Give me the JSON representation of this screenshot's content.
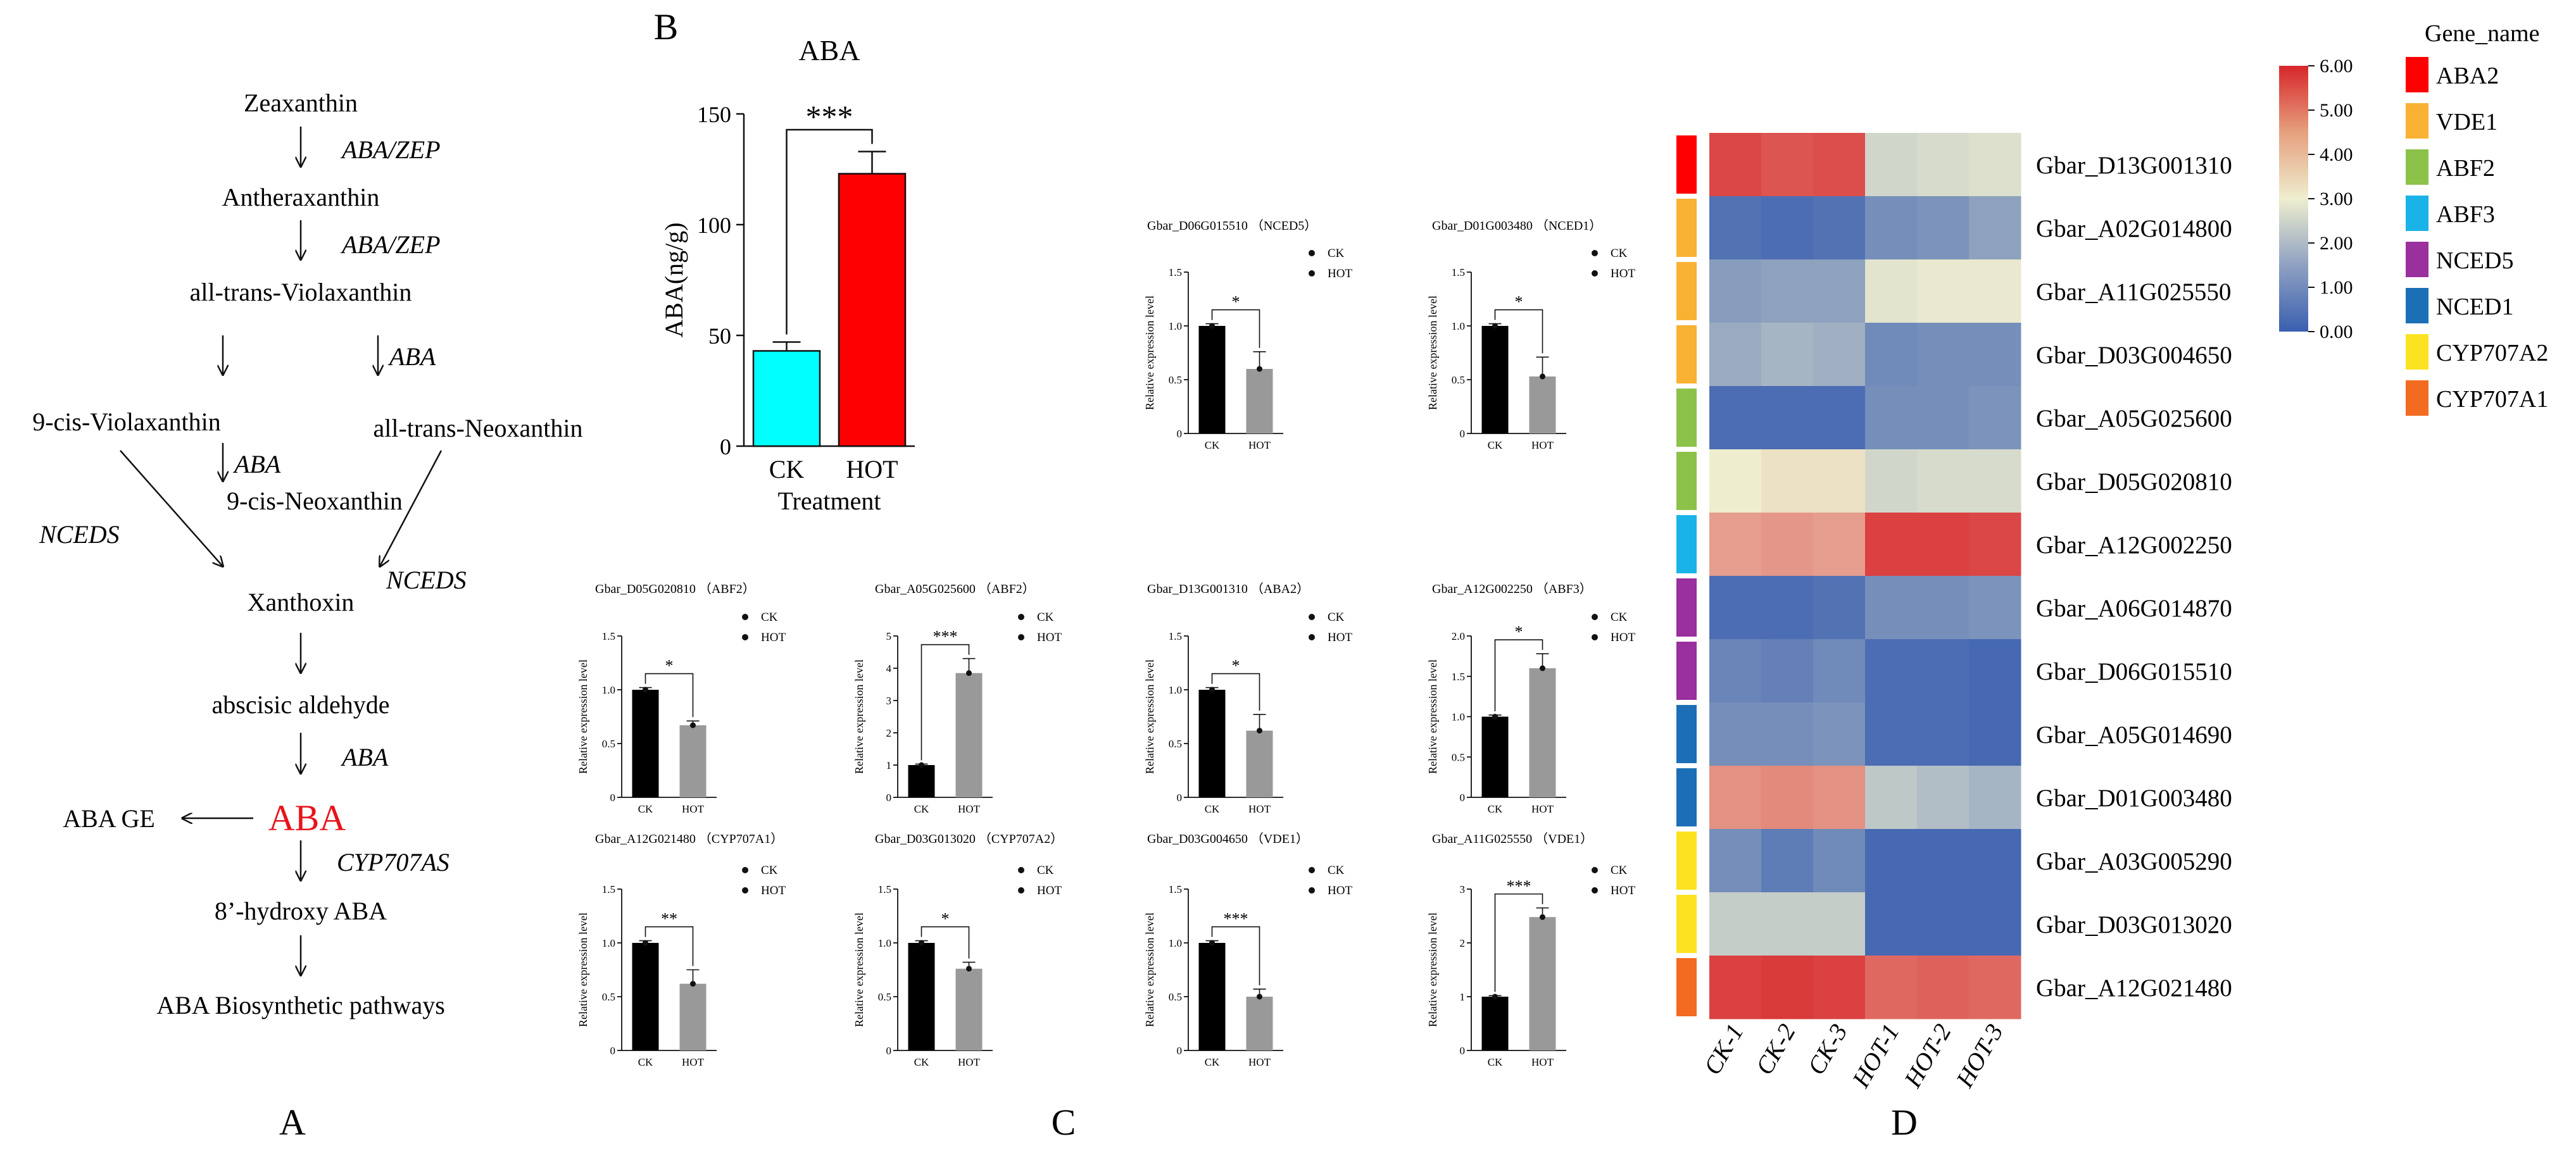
{
  "panel_labels": {
    "A": "A",
    "B": "B",
    "C": "C",
    "D": "D"
  },
  "pathway": {
    "compounds": {
      "zeaxanthin": "Zeaxanthin",
      "antheraxanthin": "Antheraxanthin",
      "all_trans_violaxanthin": "all-trans-Violaxanthin",
      "cis9_violaxanthin": "9-cis-Violaxanthin",
      "all_trans_neoxanthin": "all-trans-Neoxanthin",
      "cis9_neoxanthin": "9-cis-Neoxanthin",
      "xanthoxin": "Xanthoxin",
      "abscisic_aldehyde": "abscisic aldehyde",
      "aba": "ABA",
      "aba_ge": "ABA GE",
      "hydroxy_aba": "8’-hydroxy ABA",
      "biosynthetic": "ABA Biosynthetic pathways"
    },
    "enzymes": {
      "zep1": "ABA/ZEP",
      "zep2": "ABA/ZEP",
      "aba_right": "ABA",
      "aba_mid": "ABA",
      "nceds_left": "NCEDS",
      "nceds_right": "NCEDS",
      "aba_lower": "ABA",
      "cyp": "CYP707AS"
    },
    "aba_color": "#e8141b"
  },
  "chart_data": [
    {
      "id": "aba_main",
      "type": "bar",
      "title": "ABA",
      "xlabel": "Treatment",
      "ylabel": "ABA(ng/g)",
      "categories": [
        "CK",
        "HOT"
      ],
      "values": [
        43,
        123
      ],
      "errors": [
        4,
        10
      ],
      "colors": [
        "#00ffff",
        "#ff0000"
      ],
      "ylim": [
        0,
        150
      ],
      "yticks": [
        0,
        50,
        100,
        150
      ],
      "significance": "***"
    },
    {
      "id": "nced5",
      "type": "bar",
      "title": "Gbar_D06G015510 （NCED5）",
      "ylabel": "Relative expression level",
      "categories": [
        "CK",
        "HOT"
      ],
      "values": [
        1.0,
        0.6
      ],
      "errors": [
        0.02,
        0.16
      ],
      "colors": [
        "#000000",
        "#999999"
      ],
      "ylim": [
        0,
        1.5
      ],
      "yticks": [
        "0",
        "0.5",
        "1.0",
        "1.5"
      ],
      "significance": "*",
      "legend": [
        "CK",
        "HOT"
      ]
    },
    {
      "id": "nced1",
      "type": "bar",
      "title": "Gbar_D01G003480 （NCED1）",
      "ylabel": "Relative expression level",
      "categories": [
        "CK",
        "HOT"
      ],
      "values": [
        1.0,
        0.53
      ],
      "errors": [
        0.02,
        0.18
      ],
      "colors": [
        "#000000",
        "#999999"
      ],
      "ylim": [
        0,
        1.5
      ],
      "yticks": [
        "0",
        "0.5",
        "1.0",
        "1.5"
      ],
      "significance": "*",
      "legend": [
        "CK",
        "HOT"
      ]
    },
    {
      "id": "abf2a",
      "type": "bar",
      "title": "Gbar_D05G020810 （ABF2）",
      "ylabel": "Relative expression level",
      "categories": [
        "CK",
        "HOT"
      ],
      "values": [
        1.0,
        0.67
      ],
      "errors": [
        0.02,
        0.04
      ],
      "colors": [
        "#000000",
        "#999999"
      ],
      "ylim": [
        0,
        1.5
      ],
      "yticks": [
        "0",
        "0.5",
        "1.0",
        "1.5"
      ],
      "significance": "*",
      "legend": [
        "CK",
        "HOT"
      ]
    },
    {
      "id": "abf2b",
      "type": "bar",
      "title": "Gbar_A05G025600 （ABF2）",
      "ylabel": "Relative expression level",
      "categories": [
        "CK",
        "HOT"
      ],
      "values": [
        1.0,
        3.85
      ],
      "errors": [
        0.03,
        0.45
      ],
      "colors": [
        "#000000",
        "#999999"
      ],
      "ylim": [
        0,
        5
      ],
      "yticks": [
        "0",
        "1",
        "2",
        "3",
        "4",
        "5"
      ],
      "significance": "***",
      "legend": [
        "CK",
        "HOT"
      ]
    },
    {
      "id": "aba2",
      "type": "bar",
      "title": "Gbar_D13G001310 （ABA2）",
      "ylabel": "Relative expression level",
      "categories": [
        "CK",
        "HOT"
      ],
      "values": [
        1.0,
        0.62
      ],
      "errors": [
        0.02,
        0.15
      ],
      "colors": [
        "#000000",
        "#999999"
      ],
      "ylim": [
        0,
        1.5
      ],
      "yticks": [
        "0",
        "0.5",
        "1.0",
        "1.5"
      ],
      "significance": "*",
      "legend": [
        "CK",
        "HOT"
      ]
    },
    {
      "id": "abf3",
      "type": "bar",
      "title": "Gbar_A12G002250 （ABF3）",
      "ylabel": "Relative expression level",
      "categories": [
        "CK",
        "HOT"
      ],
      "values": [
        1.0,
        1.6
      ],
      "errors": [
        0.02,
        0.18
      ],
      "colors": [
        "#000000",
        "#999999"
      ],
      "ylim": [
        0,
        2.0
      ],
      "yticks": [
        "0",
        "0.5",
        "1.0",
        "1.5",
        "2.0"
      ],
      "significance": "*",
      "legend": [
        "CK",
        "HOT"
      ]
    },
    {
      "id": "cyp707a1",
      "type": "bar",
      "title": "Gbar_A12G021480 （CYP707A1）",
      "ylabel": "Relative expression level",
      "categories": [
        "CK",
        "HOT"
      ],
      "values": [
        1.0,
        0.62
      ],
      "errors": [
        0.02,
        0.13
      ],
      "colors": [
        "#000000",
        "#999999"
      ],
      "ylim": [
        0,
        1.5
      ],
      "yticks": [
        "0",
        "0.5",
        "1.0",
        "1.5"
      ],
      "significance": "**",
      "legend": [
        "CK",
        "HOT"
      ]
    },
    {
      "id": "cyp707a2",
      "type": "bar",
      "title": "Gbar_D03G013020 （CYP707A2）",
      "ylabel": "Relative expression level",
      "categories": [
        "CK",
        "HOT"
      ],
      "values": [
        1.0,
        0.76
      ],
      "errors": [
        0.02,
        0.06
      ],
      "colors": [
        "#000000",
        "#999999"
      ],
      "ylim": [
        0,
        1.5
      ],
      "yticks": [
        "0",
        "0.5",
        "1.0",
        "1.5"
      ],
      "significance": "*",
      "legend": [
        "CK",
        "HOT"
      ]
    },
    {
      "id": "vde1a",
      "type": "bar",
      "title": "Gbar_D03G004650 （VDE1）",
      "ylabel": "Relative expression level",
      "categories": [
        "CK",
        "HOT"
      ],
      "values": [
        1.0,
        0.5
      ],
      "errors": [
        0.02,
        0.07
      ],
      "colors": [
        "#000000",
        "#999999"
      ],
      "ylim": [
        0,
        1.5
      ],
      "yticks": [
        "0",
        "0.5",
        "1.0",
        "1.5"
      ],
      "significance": "***",
      "legend": [
        "CK",
        "HOT"
      ]
    },
    {
      "id": "vde1b",
      "type": "bar",
      "title": "Gbar_A11G025550 （VDE1）",
      "ylabel": "Relative expression level",
      "categories": [
        "CK",
        "HOT"
      ],
      "values": [
        1.0,
        2.48
      ],
      "errors": [
        0.02,
        0.17
      ],
      "colors": [
        "#000000",
        "#999999"
      ],
      "ylim": [
        0,
        3
      ],
      "yticks": [
        "0",
        "1",
        "2",
        "3"
      ],
      "significance": "***",
      "legend": [
        "CK",
        "HOT"
      ]
    },
    {
      "id": "heatmap",
      "type": "heatmap",
      "columns": [
        "CK-1",
        "CK-2",
        "CK-3",
        "HOT-1",
        "HOT-2",
        "HOT-3"
      ],
      "rows": [
        "Gbar_D13G001310",
        "Gbar_A02G014800",
        "Gbar_A11G025550",
        "Gbar_D03G004650",
        "Gbar_A05G025600",
        "Gbar_D05G020810",
        "Gbar_A12G002250",
        "Gbar_A06G014870",
        "Gbar_D06G015510",
        "Gbar_A05G014690",
        "Gbar_D01G003480",
        "Gbar_A03G005290",
        "Gbar_D03G013020",
        "Gbar_A12G021480"
      ],
      "values": [
        [
          5.5,
          5.3,
          5.4,
          2.5,
          2.6,
          2.7
        ],
        [
          0.4,
          0.3,
          0.4,
          1.0,
          1.1,
          1.4
        ],
        [
          1.3,
          1.4,
          1.4,
          2.8,
          2.9,
          2.9
        ],
        [
          1.6,
          1.8,
          1.7,
          0.9,
          1.0,
          1.0
        ],
        [
          0.3,
          0.3,
          0.3,
          1.0,
          1.0,
          1.1
        ],
        [
          3.0,
          3.2,
          3.2,
          2.5,
          2.6,
          2.6
        ],
        [
          4.2,
          4.3,
          4.2,
          5.6,
          5.6,
          5.5
        ],
        [
          0.3,
          0.3,
          0.4,
          1.0,
          1.0,
          1.1
        ],
        [
          0.8,
          0.7,
          0.9,
          0.3,
          0.3,
          0.2
        ],
        [
          1.0,
          1.0,
          1.1,
          0.3,
          0.3,
          0.2
        ],
        [
          4.4,
          4.5,
          4.4,
          2.2,
          2.0,
          1.8
        ],
        [
          1.0,
          0.6,
          0.9,
          0.2,
          0.2,
          0.2
        ],
        [
          2.3,
          2.3,
          2.3,
          0.2,
          0.2,
          0.2
        ],
        [
          5.6,
          5.7,
          5.6,
          5.0,
          5.1,
          5.0
        ]
      ],
      "row_groups": [
        "ABA2",
        "VDE1",
        "VDE1",
        "VDE1",
        "ABF2",
        "ABF2",
        "ABF3",
        "NCED5",
        "NCED5",
        "NCED1",
        "NCED1",
        "CYP707A2",
        "CYP707A2",
        "CYP707A1"
      ],
      "scale": {
        "min": 0,
        "max": 6,
        "ticks": [
          "0.00",
          "1.00",
          "2.00",
          "3.00",
          "4.00",
          "5.00",
          "6.00"
        ],
        "low": "#3a5fb0",
        "mid": "#eeeecf",
        "high": "#d7262a"
      },
      "legend_title": "Gene_name",
      "legend": [
        {
          "name": "ABA2",
          "color": "#ff0000"
        },
        {
          "name": "VDE1",
          "color": "#f9b233"
        },
        {
          "name": "ABF2",
          "color": "#8cc24a"
        },
        {
          "name": "ABF3",
          "color": "#1ab3e8"
        },
        {
          "name": "NCED5",
          "color": "#9a2f9e"
        },
        {
          "name": "NCED1",
          "color": "#1c6fb6"
        },
        {
          "name": "CYP707A2",
          "color": "#fbe322"
        },
        {
          "name": "CYP707A1",
          "color": "#f36b21"
        }
      ]
    }
  ]
}
